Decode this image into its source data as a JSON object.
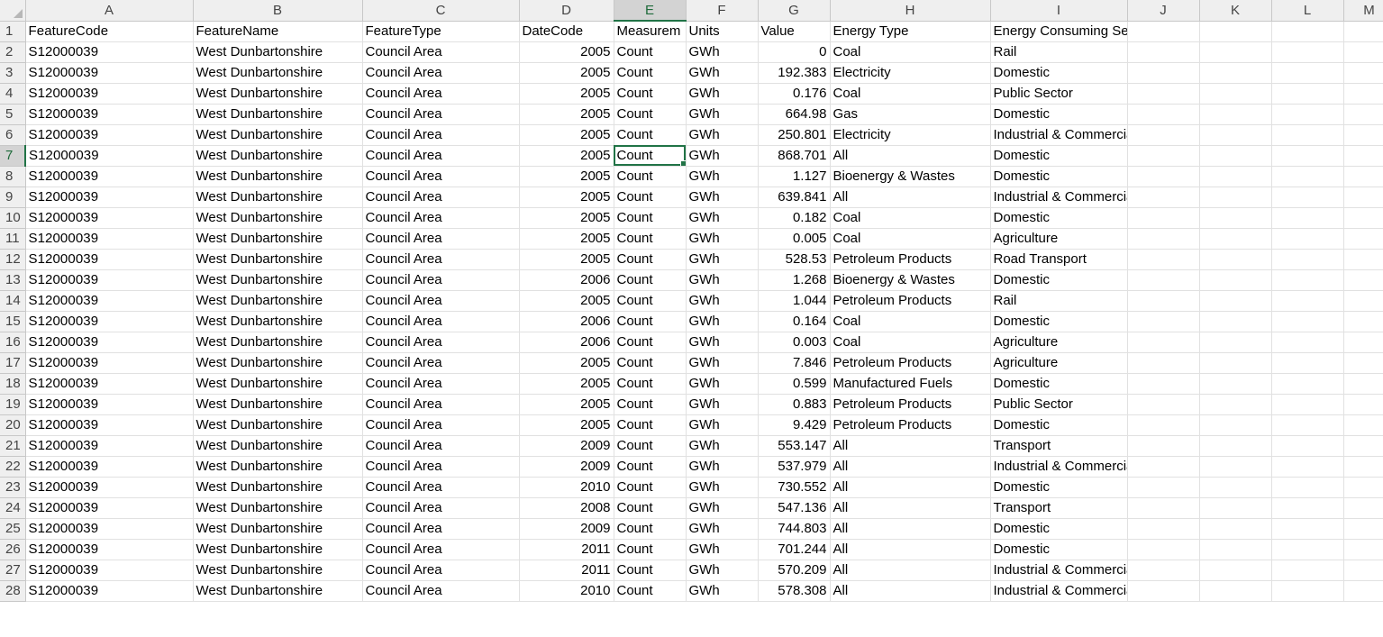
{
  "columns": [
    "A",
    "B",
    "C",
    "D",
    "E",
    "F",
    "G",
    "H",
    "I",
    "J",
    "K",
    "L",
    "M"
  ],
  "header_row": [
    "FeatureCode",
    "FeatureName",
    "FeatureType",
    "DateCode",
    "Measurem",
    "Units",
    "Value",
    "Energy Type",
    "Energy Consuming Sector",
    "",
    "",
    "",
    ""
  ],
  "active_cell": {
    "row": 7,
    "col": "E"
  },
  "rows": [
    [
      "S12000039",
      "West Dunbartonshire",
      "Council Area",
      "2005",
      "Count",
      "GWh",
      "0",
      "Coal",
      "Rail"
    ],
    [
      "S12000039",
      "West Dunbartonshire",
      "Council Area",
      "2005",
      "Count",
      "GWh",
      "192.383",
      "Electricity",
      "Domestic"
    ],
    [
      "S12000039",
      "West Dunbartonshire",
      "Council Area",
      "2005",
      "Count",
      "GWh",
      "0.176",
      "Coal",
      "Public Sector"
    ],
    [
      "S12000039",
      "West Dunbartonshire",
      "Council Area",
      "2005",
      "Count",
      "GWh",
      "664.98",
      "Gas",
      "Domestic"
    ],
    [
      "S12000039",
      "West Dunbartonshire",
      "Council Area",
      "2005",
      "Count",
      "GWh",
      "250.801",
      "Electricity",
      "Industrial & Commercial"
    ],
    [
      "S12000039",
      "West Dunbartonshire",
      "Council Area",
      "2005",
      "Count",
      "GWh",
      "868.701",
      "All",
      "Domestic"
    ],
    [
      "S12000039",
      "West Dunbartonshire",
      "Council Area",
      "2005",
      "Count",
      "GWh",
      "1.127",
      "Bioenergy & Wastes",
      "Domestic"
    ],
    [
      "S12000039",
      "West Dunbartonshire",
      "Council Area",
      "2005",
      "Count",
      "GWh",
      "639.841",
      "All",
      "Industrial & Commercial"
    ],
    [
      "S12000039",
      "West Dunbartonshire",
      "Council Area",
      "2005",
      "Count",
      "GWh",
      "0.182",
      "Coal",
      "Domestic"
    ],
    [
      "S12000039",
      "West Dunbartonshire",
      "Council Area",
      "2005",
      "Count",
      "GWh",
      "0.005",
      "Coal",
      "Agriculture"
    ],
    [
      "S12000039",
      "West Dunbartonshire",
      "Council Area",
      "2005",
      "Count",
      "GWh",
      "528.53",
      "Petroleum Products",
      "Road Transport"
    ],
    [
      "S12000039",
      "West Dunbartonshire",
      "Council Area",
      "2006",
      "Count",
      "GWh",
      "1.268",
      "Bioenergy & Wastes",
      "Domestic"
    ],
    [
      "S12000039",
      "West Dunbartonshire",
      "Council Area",
      "2005",
      "Count",
      "GWh",
      "1.044",
      "Petroleum Products",
      "Rail"
    ],
    [
      "S12000039",
      "West Dunbartonshire",
      "Council Area",
      "2006",
      "Count",
      "GWh",
      "0.164",
      "Coal",
      "Domestic"
    ],
    [
      "S12000039",
      "West Dunbartonshire",
      "Council Area",
      "2006",
      "Count",
      "GWh",
      "0.003",
      "Coal",
      "Agriculture"
    ],
    [
      "S12000039",
      "West Dunbartonshire",
      "Council Area",
      "2005",
      "Count",
      "GWh",
      "7.846",
      "Petroleum Products",
      "Agriculture"
    ],
    [
      "S12000039",
      "West Dunbartonshire",
      "Council Area",
      "2005",
      "Count",
      "GWh",
      "0.599",
      "Manufactured Fuels",
      "Domestic"
    ],
    [
      "S12000039",
      "West Dunbartonshire",
      "Council Area",
      "2005",
      "Count",
      "GWh",
      "0.883",
      "Petroleum Products",
      "Public Sector"
    ],
    [
      "S12000039",
      "West Dunbartonshire",
      "Council Area",
      "2005",
      "Count",
      "GWh",
      "9.429",
      "Petroleum Products",
      "Domestic"
    ],
    [
      "S12000039",
      "West Dunbartonshire",
      "Council Area",
      "2009",
      "Count",
      "GWh",
      "553.147",
      "All",
      "Transport"
    ],
    [
      "S12000039",
      "West Dunbartonshire",
      "Council Area",
      "2009",
      "Count",
      "GWh",
      "537.979",
      "All",
      "Industrial & Commercial"
    ],
    [
      "S12000039",
      "West Dunbartonshire",
      "Council Area",
      "2010",
      "Count",
      "GWh",
      "730.552",
      "All",
      "Domestic"
    ],
    [
      "S12000039",
      "West Dunbartonshire",
      "Council Area",
      "2008",
      "Count",
      "GWh",
      "547.136",
      "All",
      "Transport"
    ],
    [
      "S12000039",
      "West Dunbartonshire",
      "Council Area",
      "2009",
      "Count",
      "GWh",
      "744.803",
      "All",
      "Domestic"
    ],
    [
      "S12000039",
      "West Dunbartonshire",
      "Council Area",
      "2011",
      "Count",
      "GWh",
      "701.244",
      "All",
      "Domestic"
    ],
    [
      "S12000039",
      "West Dunbartonshire",
      "Council Area",
      "2011",
      "Count",
      "GWh",
      "570.209",
      "All",
      "Industrial & Commercial"
    ],
    [
      "S12000039",
      "West Dunbartonshire",
      "Council Area",
      "2010",
      "Count",
      "GWh",
      "578.308",
      "All",
      "Industrial & Commercial"
    ]
  ]
}
